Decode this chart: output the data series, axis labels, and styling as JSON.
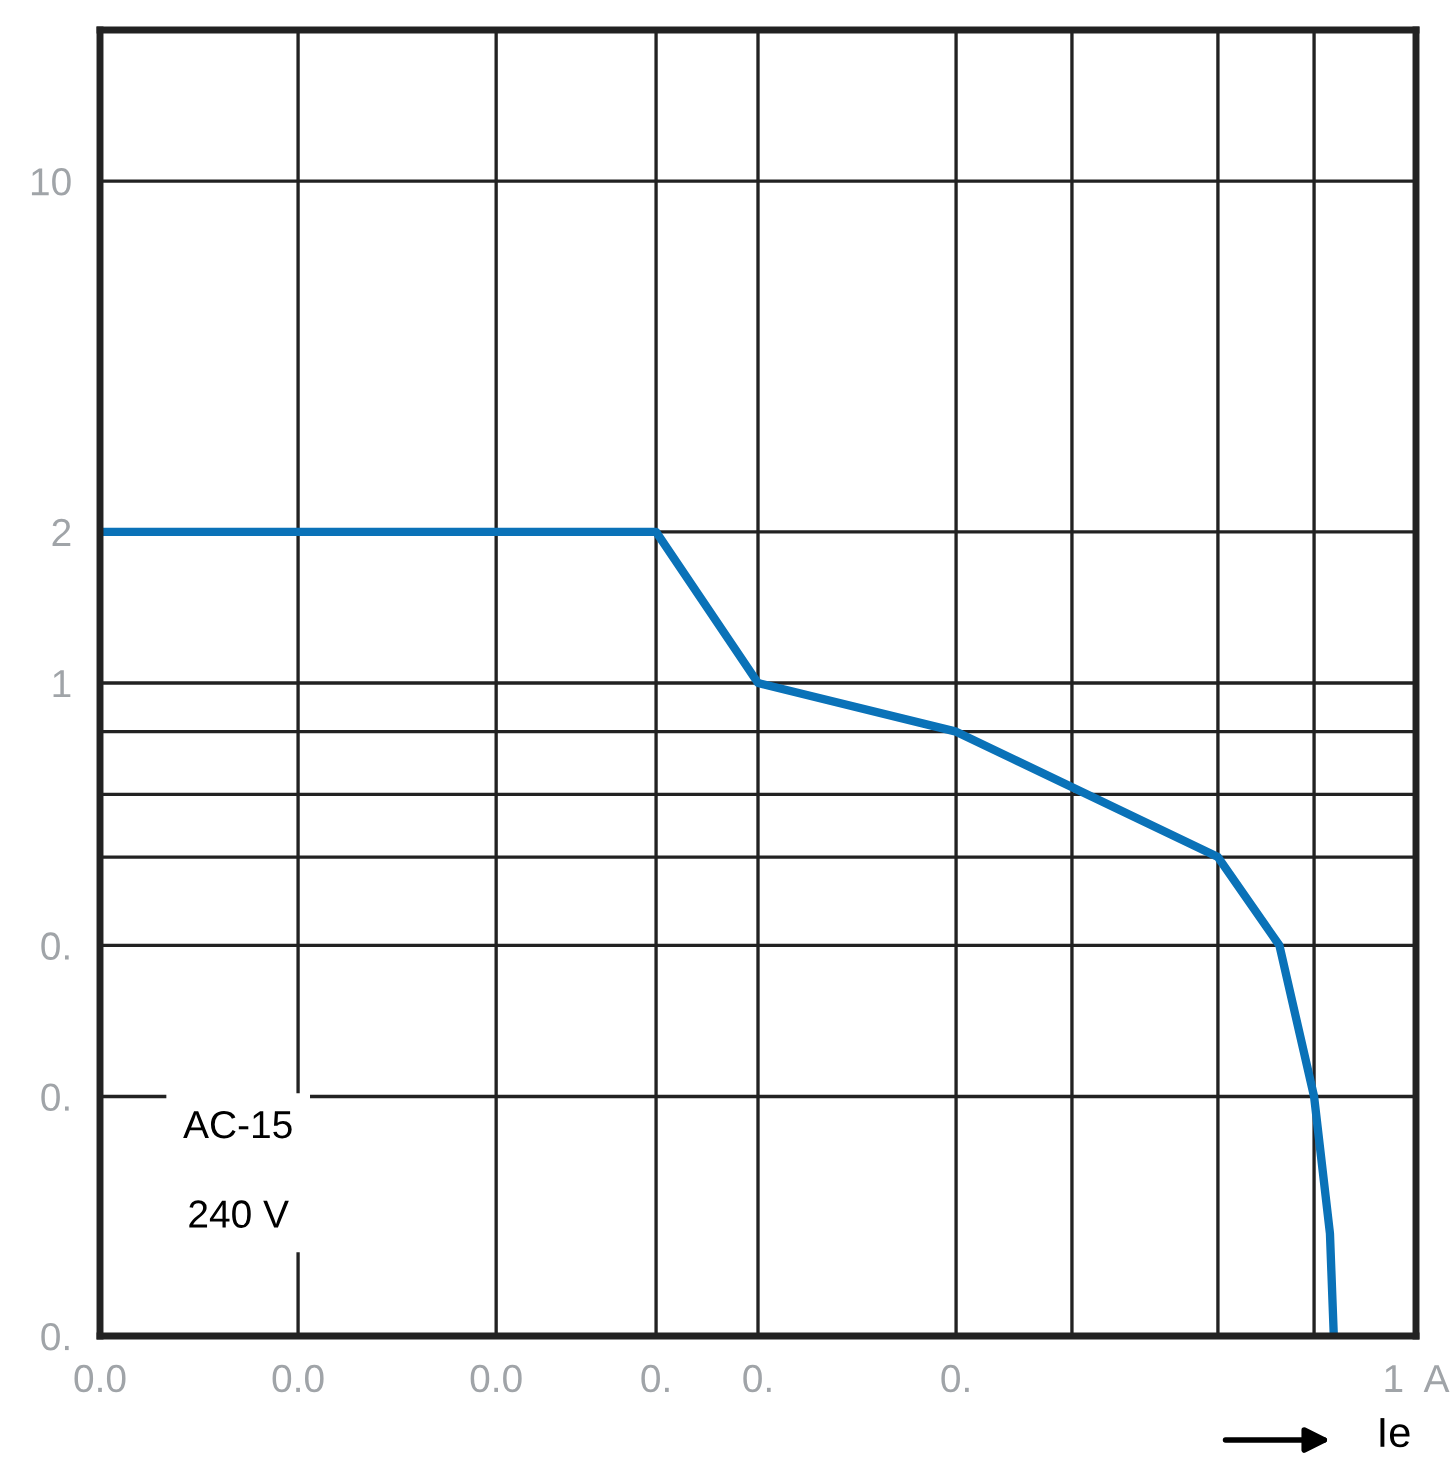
{
  "chart_data": {
    "type": "line",
    "xlabel": "Ie",
    "log": "xy",
    "grid": true,
    "legend": false,
    "marker": "none",
    "line_style": "solid",
    "x": [
      0.01,
      0.07,
      0.1,
      0.2,
      0.5,
      0.62,
      0.7,
      0.74,
      0.75
    ],
    "series": [
      {
        "color": "#0a72b8",
        "values": [
          2,
          2,
          1,
          0.8,
          0.45,
          0.3,
          0.15,
          0.08,
          0.05
        ]
      }
    ],
    "xlim": [
      0.01,
      1
    ],
    "xticks": [
      {
        "value": 0.01,
        "label": "0.0"
      },
      {
        "value": 0.02,
        "label": "0.0"
      },
      {
        "value": 0.04,
        "label": "0.0"
      },
      {
        "value": 0.07,
        "label": "0."
      },
      {
        "value": 0.1,
        "label": "0."
      },
      {
        "value": 0.2,
        "label": "0."
      },
      {
        "value": 0.3,
        "label": null
      },
      {
        "value": 0.5,
        "label": null
      },
      {
        "value": 0.7,
        "label": null
      },
      {
        "value": 1,
        "label": "1  A"
      }
    ],
    "ylim": [
      0.05,
      20
    ],
    "yticks": [
      10,
      2,
      1,
      {
        "value": 0.8,
        "label": null
      },
      {
        "value": 0.6,
        "label": null
      },
      {
        "value": 0.45,
        "label": null
      },
      {
        "value": 0.3,
        "label": "0."
      },
      {
        "value": 0.15,
        "label": "0."
      },
      {
        "value": 0.05,
        "label": "0."
      }
    ],
    "annotations": [
      "AC-15",
      "240 V"
    ]
  }
}
